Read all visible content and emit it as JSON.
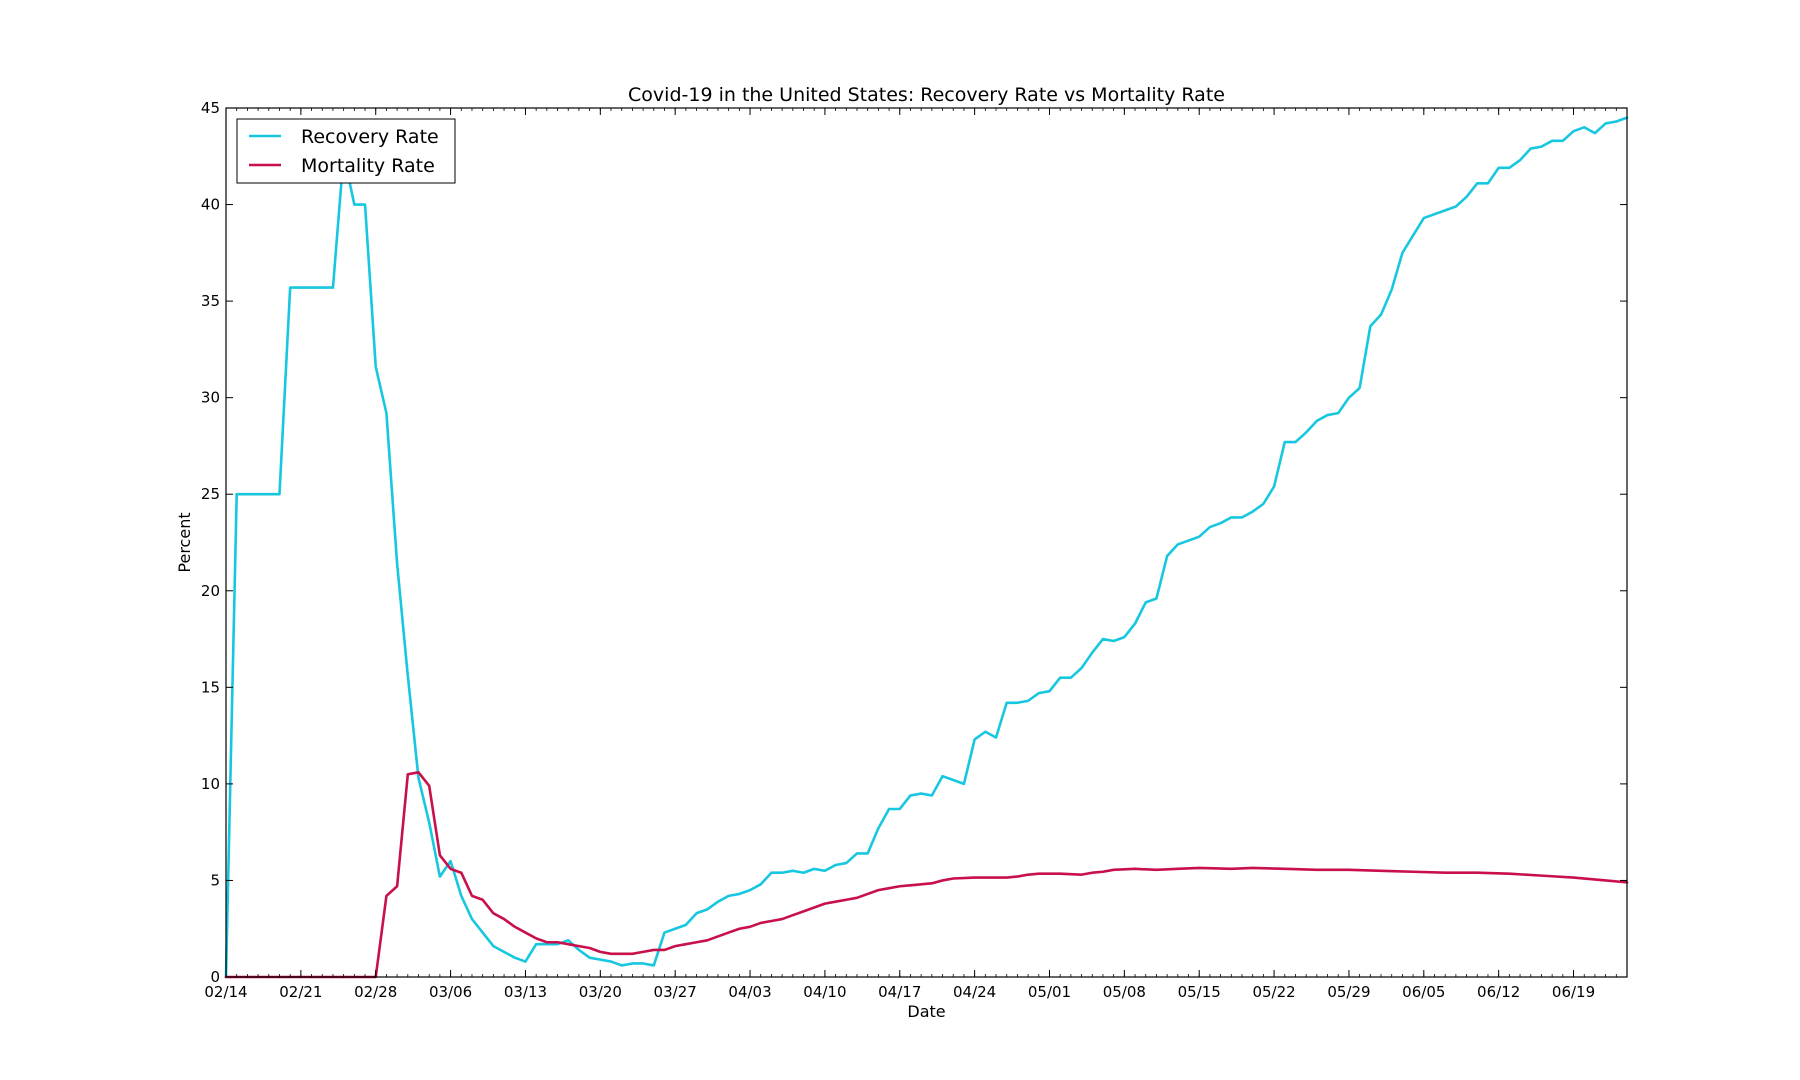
{
  "chart_data": {
    "type": "line",
    "title": "Covid-19 in the United States: Recovery Rate vs Mortality Rate",
    "xlabel": "Date",
    "ylabel": "Percent",
    "ylim": [
      0,
      45
    ],
    "yticks": [
      0,
      5,
      10,
      15,
      20,
      25,
      30,
      35,
      40,
      45
    ],
    "x_start": "02/14",
    "x_end": "06/24",
    "xticks": [
      "02/14",
      "02/21",
      "02/28",
      "03/06",
      "03/13",
      "03/20",
      "03/27",
      "04/03",
      "04/10",
      "04/17",
      "04/24",
      "05/01",
      "05/08",
      "05/15",
      "05/22",
      "05/29",
      "06/05",
      "06/12",
      "06/19"
    ],
    "grid": false,
    "legend_position": "top-left",
    "series": [
      {
        "name": "Recovery Rate",
        "color": "#17c7e0",
        "points": [
          [
            "02/14",
            0
          ],
          [
            "02/15",
            25
          ],
          [
            "02/16",
            25
          ],
          [
            "02/17",
            25
          ],
          [
            "02/18",
            25
          ],
          [
            "02/19",
            25
          ],
          [
            "02/20",
            35.7
          ],
          [
            "02/21",
            35.7
          ],
          [
            "02/22",
            35.7
          ],
          [
            "02/23",
            35.7
          ],
          [
            "02/24",
            35.7
          ],
          [
            "02/25",
            42.6
          ],
          [
            "02/26",
            40
          ],
          [
            "02/27",
            40
          ],
          [
            "02/28",
            31.6
          ],
          [
            "02/29",
            29.2
          ],
          [
            "03/01",
            21.4
          ],
          [
            "03/02",
            15.6
          ],
          [
            "03/03",
            10.3
          ],
          [
            "03/04",
            8
          ],
          [
            "03/05",
            5.2
          ],
          [
            "03/06",
            6
          ],
          [
            "03/07",
            4.2
          ],
          [
            "03/08",
            3
          ],
          [
            "03/09",
            2.3
          ],
          [
            "03/10",
            1.6
          ],
          [
            "03/11",
            1.3
          ],
          [
            "03/12",
            1
          ],
          [
            "03/13",
            0.8
          ],
          [
            "03/14",
            1.7
          ],
          [
            "03/15",
            1.7
          ],
          [
            "03/16",
            1.7
          ],
          [
            "03/17",
            1.9
          ],
          [
            "03/18",
            1.4
          ],
          [
            "03/19",
            1
          ],
          [
            "03/20",
            0.9
          ],
          [
            "03/21",
            0.8
          ],
          [
            "03/22",
            0.6
          ],
          [
            "03/23",
            0.7
          ],
          [
            "03/24",
            0.7
          ],
          [
            "03/25",
            0.6
          ],
          [
            "03/26",
            2.3
          ],
          [
            "03/27",
            2.5
          ],
          [
            "03/28",
            2.7
          ],
          [
            "03/29",
            3.3
          ],
          [
            "03/30",
            3.5
          ],
          [
            "03/31",
            3.9
          ],
          [
            "04/01",
            4.2
          ],
          [
            "04/02",
            4.3
          ],
          [
            "04/03",
            4.5
          ],
          [
            "04/04",
            4.8
          ],
          [
            "04/05",
            5.4
          ],
          [
            "04/06",
            5.4
          ],
          [
            "04/07",
            5.5
          ],
          [
            "04/08",
            5.4
          ],
          [
            "04/09",
            5.6
          ],
          [
            "04/10",
            5.5
          ],
          [
            "04/11",
            5.8
          ],
          [
            "04/12",
            5.9
          ],
          [
            "04/13",
            6.4
          ],
          [
            "04/14",
            6.4
          ],
          [
            "04/15",
            7.7
          ],
          [
            "04/16",
            8.7
          ],
          [
            "04/17",
            8.7
          ],
          [
            "04/18",
            9.4
          ],
          [
            "04/19",
            9.5
          ],
          [
            "04/20",
            9.4
          ],
          [
            "04/21",
            10.4
          ],
          [
            "04/22",
            10.2
          ],
          [
            "04/23",
            10
          ],
          [
            "04/24",
            12.3
          ],
          [
            "04/25",
            12.7
          ],
          [
            "04/26",
            12.4
          ],
          [
            "04/27",
            14.2
          ],
          [
            "04/28",
            14.2
          ],
          [
            "04/29",
            14.3
          ],
          [
            "04/30",
            14.7
          ],
          [
            "05/01",
            14.8
          ],
          [
            "05/02",
            15.5
          ],
          [
            "05/03",
            15.5
          ],
          [
            "05/04",
            16
          ],
          [
            "05/05",
            16.8
          ],
          [
            "05/06",
            17.5
          ],
          [
            "05/07",
            17.4
          ],
          [
            "05/08",
            17.6
          ],
          [
            "05/09",
            18.3
          ],
          [
            "05/10",
            19.4
          ],
          [
            "05/11",
            19.6
          ],
          [
            "05/12",
            21.8
          ],
          [
            "05/13",
            22.4
          ],
          [
            "05/14",
            22.6
          ],
          [
            "05/15",
            22.8
          ],
          [
            "05/16",
            23.3
          ],
          [
            "05/17",
            23.5
          ],
          [
            "05/18",
            23.8
          ],
          [
            "05/19",
            23.8
          ],
          [
            "05/20",
            24.1
          ],
          [
            "05/21",
            24.5
          ],
          [
            "05/22",
            25.4
          ],
          [
            "05/23",
            27.7
          ],
          [
            "05/24",
            27.7
          ],
          [
            "05/25",
            28.2
          ],
          [
            "05/26",
            28.8
          ],
          [
            "05/27",
            29.1
          ],
          [
            "05/28",
            29.2
          ],
          [
            "05/29",
            30
          ],
          [
            "05/30",
            30.5
          ],
          [
            "05/31",
            33.7
          ],
          [
            "06/01",
            34.3
          ],
          [
            "06/02",
            35.6
          ],
          [
            "06/03",
            37.5
          ],
          [
            "06/04",
            38.4
          ],
          [
            "06/05",
            39.3
          ],
          [
            "06/06",
            39.5
          ],
          [
            "06/07",
            39.7
          ],
          [
            "06/08",
            39.9
          ],
          [
            "06/09",
            40.4
          ],
          [
            "06/10",
            41.1
          ],
          [
            "06/11",
            41.1
          ],
          [
            "06/12",
            41.9
          ],
          [
            "06/13",
            41.9
          ],
          [
            "06/14",
            42.3
          ],
          [
            "06/15",
            42.9
          ],
          [
            "06/16",
            43
          ],
          [
            "06/17",
            43.3
          ],
          [
            "06/18",
            43.3
          ],
          [
            "06/19",
            43.8
          ],
          [
            "06/20",
            44
          ],
          [
            "06/21",
            43.7
          ],
          [
            "06/22",
            44.2
          ],
          [
            "06/23",
            44.3
          ],
          [
            "06/24",
            44.5
          ]
        ]
      },
      {
        "name": "Mortality Rate",
        "color": "#c8104a",
        "points": [
          [
            "02/14",
            0
          ],
          [
            "02/20",
            0
          ],
          [
            "02/27",
            0
          ],
          [
            "02/28",
            0
          ],
          [
            "02/29",
            4.2
          ],
          [
            "03/01",
            4.7
          ],
          [
            "03/02",
            10.5
          ],
          [
            "03/03",
            10.6
          ],
          [
            "03/04",
            9.9
          ],
          [
            "03/05",
            6.3
          ],
          [
            "03/06",
            5.6
          ],
          [
            "03/07",
            5.4
          ],
          [
            "03/08",
            4.2
          ],
          [
            "03/09",
            4
          ],
          [
            "03/10",
            3.3
          ],
          [
            "03/11",
            3
          ],
          [
            "03/12",
            2.6
          ],
          [
            "03/13",
            2.3
          ],
          [
            "03/14",
            2
          ],
          [
            "03/15",
            1.8
          ],
          [
            "03/16",
            1.8
          ],
          [
            "03/17",
            1.7
          ],
          [
            "03/18",
            1.6
          ],
          [
            "03/19",
            1.5
          ],
          [
            "03/20",
            1.3
          ],
          [
            "03/21",
            1.2
          ],
          [
            "03/22",
            1.2
          ],
          [
            "03/23",
            1.2
          ],
          [
            "03/24",
            1.3
          ],
          [
            "03/25",
            1.4
          ],
          [
            "03/26",
            1.4
          ],
          [
            "03/27",
            1.6
          ],
          [
            "03/28",
            1.7
          ],
          [
            "03/29",
            1.8
          ],
          [
            "03/30",
            1.9
          ],
          [
            "03/31",
            2.1
          ],
          [
            "04/01",
            2.3
          ],
          [
            "04/02",
            2.5
          ],
          [
            "04/03",
            2.6
          ],
          [
            "04/04",
            2.8
          ],
          [
            "04/05",
            2.9
          ],
          [
            "04/06",
            3.0
          ],
          [
            "04/07",
            3.2
          ],
          [
            "04/08",
            3.4
          ],
          [
            "04/09",
            3.6
          ],
          [
            "04/10",
            3.8
          ],
          [
            "04/11",
            3.9
          ],
          [
            "04/12",
            4.0
          ],
          [
            "04/13",
            4.1
          ],
          [
            "04/14",
            4.3
          ],
          [
            "04/15",
            4.5
          ],
          [
            "04/16",
            4.6
          ],
          [
            "04/17",
            4.7
          ],
          [
            "04/18",
            4.75
          ],
          [
            "04/19",
            4.8
          ],
          [
            "04/20",
            4.85
          ],
          [
            "04/21",
            5.0
          ],
          [
            "04/22",
            5.1
          ],
          [
            "04/24",
            5.15
          ],
          [
            "04/26",
            5.15
          ],
          [
            "04/27",
            5.15
          ],
          [
            "04/28",
            5.2
          ],
          [
            "04/29",
            5.3
          ],
          [
            "04/30",
            5.35
          ],
          [
            "05/02",
            5.35
          ],
          [
            "05/04",
            5.3
          ],
          [
            "05/05",
            5.4
          ],
          [
            "05/06",
            5.45
          ],
          [
            "05/07",
            5.55
          ],
          [
            "05/09",
            5.6
          ],
          [
            "05/11",
            5.55
          ],
          [
            "05/13",
            5.6
          ],
          [
            "05/15",
            5.65
          ],
          [
            "05/18",
            5.6
          ],
          [
            "05/20",
            5.65
          ],
          [
            "05/23",
            5.6
          ],
          [
            "05/26",
            5.55
          ],
          [
            "05/29",
            5.55
          ],
          [
            "06/01",
            5.5
          ],
          [
            "06/04",
            5.45
          ],
          [
            "06/07",
            5.4
          ],
          [
            "06/10",
            5.4
          ],
          [
            "06/13",
            5.35
          ],
          [
            "06/16",
            5.25
          ],
          [
            "06/19",
            5.15
          ],
          [
            "06/22",
            5.0
          ],
          [
            "06/24",
            4.9
          ]
        ]
      }
    ]
  }
}
